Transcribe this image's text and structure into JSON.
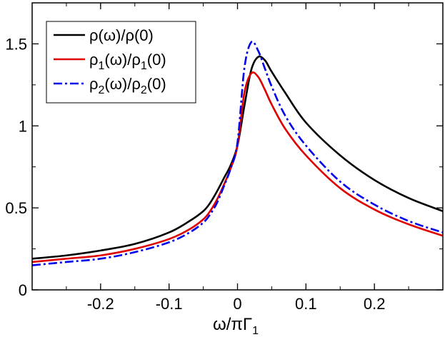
{
  "chart_data": {
    "type": "line",
    "title": "",
    "xlabel": "ω/πΓ",
    "xlabel_sub": "1",
    "ylabel": "",
    "xlim": [
      -0.3,
      0.3
    ],
    "ylim": [
      0,
      1.75
    ],
    "xticks": [
      -0.2,
      -0.1,
      0,
      0.1,
      0.2
    ],
    "xtick_labels": [
      "-0.2",
      "-0.1",
      "0",
      "0.1",
      "0.2"
    ],
    "yticks": [
      0,
      0.5,
      1,
      1.5
    ],
    "ytick_labels": [
      "0",
      "0.5",
      "1",
      "1.5"
    ],
    "grid": false,
    "legend_position": "top-left",
    "series": [
      {
        "name": "ρ(ω)/ρ(0)",
        "legend": {
          "pre": "ρ(ω)/ρ(0)",
          "sub1": "",
          "mid": "",
          "sub2": "",
          "post": ""
        },
        "color": "#000000",
        "dash": "",
        "x": [
          -0.3,
          -0.25,
          -0.2,
          -0.15,
          -0.1,
          -0.07,
          -0.05,
          -0.04,
          -0.03,
          -0.02,
          -0.01,
          0.0,
          0.01,
          0.02,
          0.03,
          0.04,
          0.05,
          0.07,
          0.1,
          0.15,
          0.2,
          0.25,
          0.3
        ],
        "values": [
          0.19,
          0.21,
          0.24,
          0.28,
          0.35,
          0.42,
          0.48,
          0.53,
          0.6,
          0.68,
          0.76,
          0.88,
          1.12,
          1.34,
          1.42,
          1.4,
          1.33,
          1.2,
          1.02,
          0.82,
          0.67,
          0.56,
          0.48
        ]
      },
      {
        "name": "ρ1(ω)/ρ1(0)",
        "legend": {
          "pre": "ρ",
          "sub1": "1",
          "mid": "(ω)/ρ",
          "sub2": "1",
          "post": "(0)"
        },
        "color": "#e00000",
        "dash": "",
        "x": [
          -0.3,
          -0.25,
          -0.2,
          -0.15,
          -0.1,
          -0.07,
          -0.05,
          -0.04,
          -0.03,
          -0.02,
          -0.01,
          0.0,
          0.01,
          0.02,
          0.03,
          0.04,
          0.05,
          0.07,
          0.1,
          0.15,
          0.2,
          0.25,
          0.3
        ],
        "values": [
          0.17,
          0.19,
          0.21,
          0.25,
          0.31,
          0.37,
          0.43,
          0.48,
          0.55,
          0.64,
          0.74,
          0.88,
          1.2,
          1.32,
          1.3,
          1.22,
          1.13,
          0.98,
          0.82,
          0.62,
          0.49,
          0.4,
          0.33
        ]
      },
      {
        "name": "ρ2(ω)/ρ2(0)",
        "legend": {
          "pre": "ρ",
          "sub1": "2",
          "mid": "(ω)/ρ",
          "sub2": "2",
          "post": "(0)"
        },
        "color": "#0000ee",
        "dash": "12,4,3,4",
        "x": [
          -0.3,
          -0.25,
          -0.2,
          -0.15,
          -0.1,
          -0.07,
          -0.05,
          -0.04,
          -0.03,
          -0.02,
          -0.01,
          0.0,
          0.01,
          0.02,
          0.03,
          0.04,
          0.05,
          0.07,
          0.1,
          0.15,
          0.2,
          0.25,
          0.3
        ],
        "values": [
          0.15,
          0.17,
          0.19,
          0.23,
          0.29,
          0.35,
          0.41,
          0.46,
          0.53,
          0.63,
          0.74,
          0.9,
          1.35,
          1.51,
          1.46,
          1.35,
          1.24,
          1.06,
          0.88,
          0.66,
          0.52,
          0.42,
          0.35
        ]
      }
    ]
  }
}
